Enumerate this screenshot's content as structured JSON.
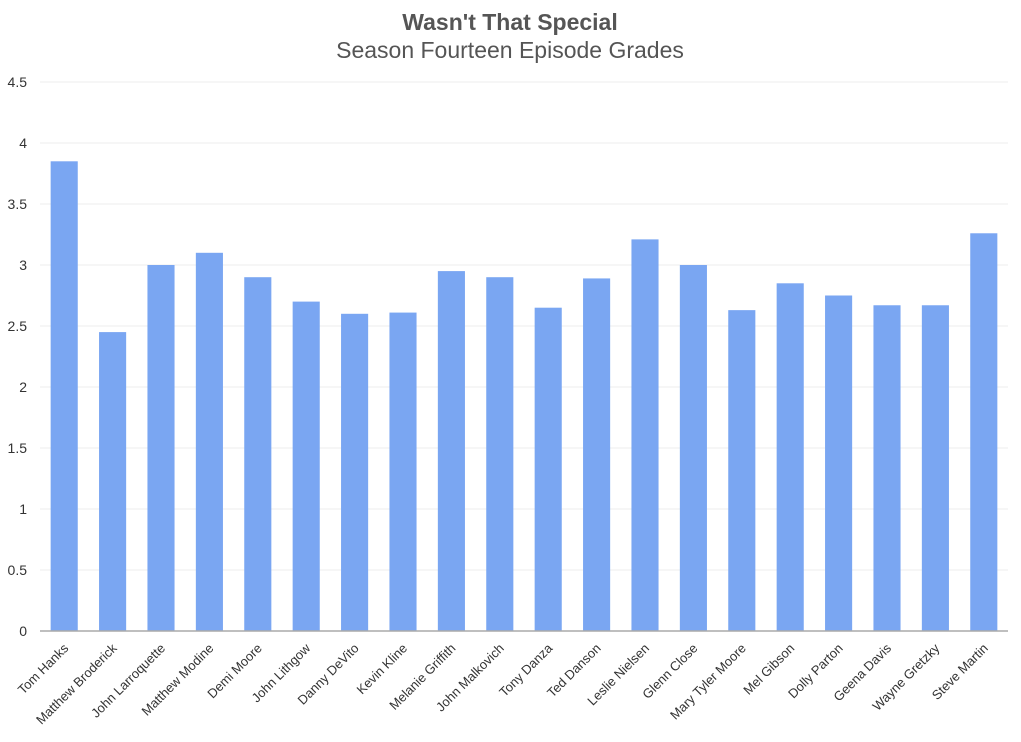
{
  "chart_data": {
    "type": "bar",
    "title": "Wasn't That Special",
    "subtitle": "Season Fourteen Episode Grades",
    "xlabel": "",
    "ylabel": "",
    "ylim": [
      0,
      4.5
    ],
    "yticks": [
      "0",
      "0.5",
      "1",
      "1.5",
      "2",
      "2.5",
      "3",
      "3.5",
      "4",
      "4.5"
    ],
    "grid": true,
    "legend": "none",
    "bar_color": "#7aa6f2",
    "categories": [
      "Tom Hanks",
      "Matthew Broderick",
      "John Larroquette",
      "Matthew Modine",
      "Demi Moore",
      "John Lithgow",
      "Danny DeVito",
      "Kevin Kline",
      "Melanie Griffith",
      "John Malkovich",
      "Tony Danza",
      "Ted Danson",
      "Leslie Nielsen",
      "Glenn Close",
      "Mary Tyler Moore",
      "Mel Gibson",
      "Dolly Parton",
      "Geena Davis",
      "Wayne Gretzky",
      "Steve Martin"
    ],
    "values": [
      3.85,
      2.45,
      3.0,
      3.1,
      2.9,
      2.7,
      2.6,
      2.61,
      2.95,
      2.9,
      2.65,
      2.89,
      3.21,
      3.0,
      2.63,
      2.85,
      2.75,
      2.67,
      2.67,
      3.26
    ]
  }
}
